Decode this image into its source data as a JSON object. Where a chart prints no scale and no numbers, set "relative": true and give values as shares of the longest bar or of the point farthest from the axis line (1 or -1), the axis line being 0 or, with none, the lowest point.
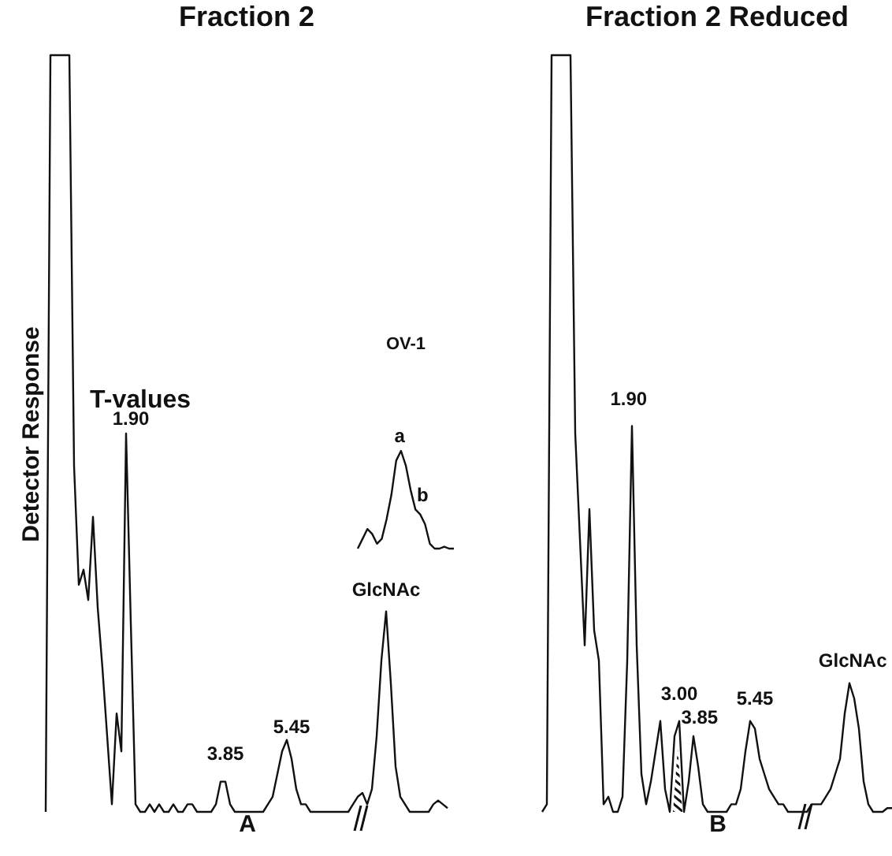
{
  "chart_data": [
    {
      "type": "line",
      "title": "Fraction 2",
      "xlabel": "A",
      "ylabel": "Detector Response",
      "relative": true,
      "categories": [
        null,
        null,
        null,
        null,
        null,
        null,
        null,
        null,
        null,
        null,
        null,
        null,
        null,
        null,
        null,
        null,
        null,
        null,
        null,
        null,
        null,
        null,
        null,
        null,
        null,
        null,
        null,
        null,
        null,
        null,
        null,
        null,
        null,
        null,
        null,
        null,
        null,
        null,
        null,
        null,
        null,
        null,
        null,
        null,
        null,
        null,
        null,
        null,
        null,
        null,
        null,
        null,
        null,
        null,
        null,
        null,
        null,
        null,
        null,
        null,
        null,
        null,
        null,
        null,
        null,
        null,
        null,
        null,
        null,
        null,
        null,
        null,
        null,
        null,
        null,
        null,
        null,
        null,
        null,
        null,
        null,
        null,
        null,
        null,
        null,
        null
      ],
      "series": [
        {
          "color": "#111111",
          "values": [
            0,
            1,
            1,
            1,
            1,
            1,
            0.457,
            0.3,
            0.32,
            0.28,
            0.39,
            0.27,
            0.19,
            0.1,
            0.01,
            0.13,
            0.08,
            0.5,
            0.25,
            0.01,
            0,
            0,
            0.01,
            0,
            0.01,
            0,
            0,
            0.01,
            0,
            0,
            0.01,
            0.01,
            0,
            0,
            0,
            0,
            0.01,
            0.04,
            0.04,
            0.01,
            0,
            0,
            0,
            0,
            0,
            0,
            0,
            0.01,
            0.02,
            0.05,
            0.08,
            0.095,
            0.07,
            0.03,
            0.01,
            0.01,
            0,
            0,
            0,
            0,
            0,
            0,
            0,
            0,
            0,
            0.01,
            0.02,
            0.025,
            0.01,
            0.03,
            0.1,
            0.2,
            0.265,
            0.17,
            0.06,
            0.02,
            0.01,
            0,
            0,
            0,
            0,
            0,
            0.01,
            0.015,
            0.01,
            0.005
          ]
        }
      ],
      "annotations": [
        "T-values",
        "1.90",
        "3.85",
        "5.45",
        "GlcNAc"
      ]
    },
    {
      "type": "line",
      "title": "Fraction 2 Reduced",
      "xlabel": "B",
      "relative": true,
      "categories": [
        null,
        null,
        null,
        null,
        null,
        null,
        null,
        null,
        null,
        null,
        null,
        null,
        null,
        null,
        null,
        null,
        null,
        null,
        null,
        null,
        null,
        null,
        null,
        null,
        null,
        null,
        null,
        null,
        null,
        null,
        null,
        null,
        null,
        null,
        null,
        null,
        null,
        null,
        null,
        null,
        null,
        null,
        null,
        null,
        null,
        null,
        null,
        null,
        null,
        null,
        null,
        null,
        null,
        null,
        null,
        null,
        null,
        null,
        null,
        null,
        null,
        null,
        null,
        null,
        null,
        null,
        null,
        null,
        null,
        null,
        null,
        null,
        null,
        null,
        null
      ],
      "series": [
        {
          "color": "#111111",
          "values": [
            0,
            0.01,
            1,
            1,
            1,
            1,
            1,
            0.5,
            0.36,
            0.22,
            0.4,
            0.24,
            0.2,
            0.01,
            0.02,
            0,
            0,
            0.02,
            0.2,
            0.51,
            0.22,
            0.05,
            0.01,
            0.04,
            0.08,
            0.12,
            0.03,
            0,
            0.1,
            0.12,
            0,
            0.04,
            0.1,
            0.06,
            0.01,
            0,
            0,
            0,
            0,
            0,
            0.01,
            0.01,
            0.03,
            0.08,
            0.12,
            0.11,
            0.07,
            0.05,
            0.03,
            0.02,
            0.01,
            0.01,
            0,
            0,
            0,
            0,
            0,
            0.01,
            0.01,
            0.01,
            0.02,
            0.03,
            0.05,
            0.07,
            0.13,
            0.17,
            0.15,
            0.11,
            0.04,
            0.01,
            0,
            0,
            0,
            0.005,
            0.005
          ]
        }
      ],
      "annotations": [
        "1.90",
        "3.00",
        "3.85",
        "5.45",
        "GlcNAc"
      ]
    },
    {
      "type": "line",
      "title": "OV-1",
      "relative": true,
      "categories": [
        null,
        null,
        null,
        null,
        null,
        null,
        null,
        null,
        null,
        null,
        null,
        null,
        null,
        null,
        null,
        null,
        null,
        null,
        null,
        null,
        null
      ],
      "series": [
        {
          "color": "#111111",
          "values": [
            0,
            0.1,
            0.2,
            0.15,
            0.05,
            0.1,
            0.3,
            0.55,
            0.9,
            1,
            0.85,
            0.6,
            0.4,
            0.35,
            0.25,
            0.05,
            0,
            0,
            0.02,
            0,
            0
          ]
        }
      ],
      "annotations": [
        "a",
        "b"
      ]
    }
  ]
}
